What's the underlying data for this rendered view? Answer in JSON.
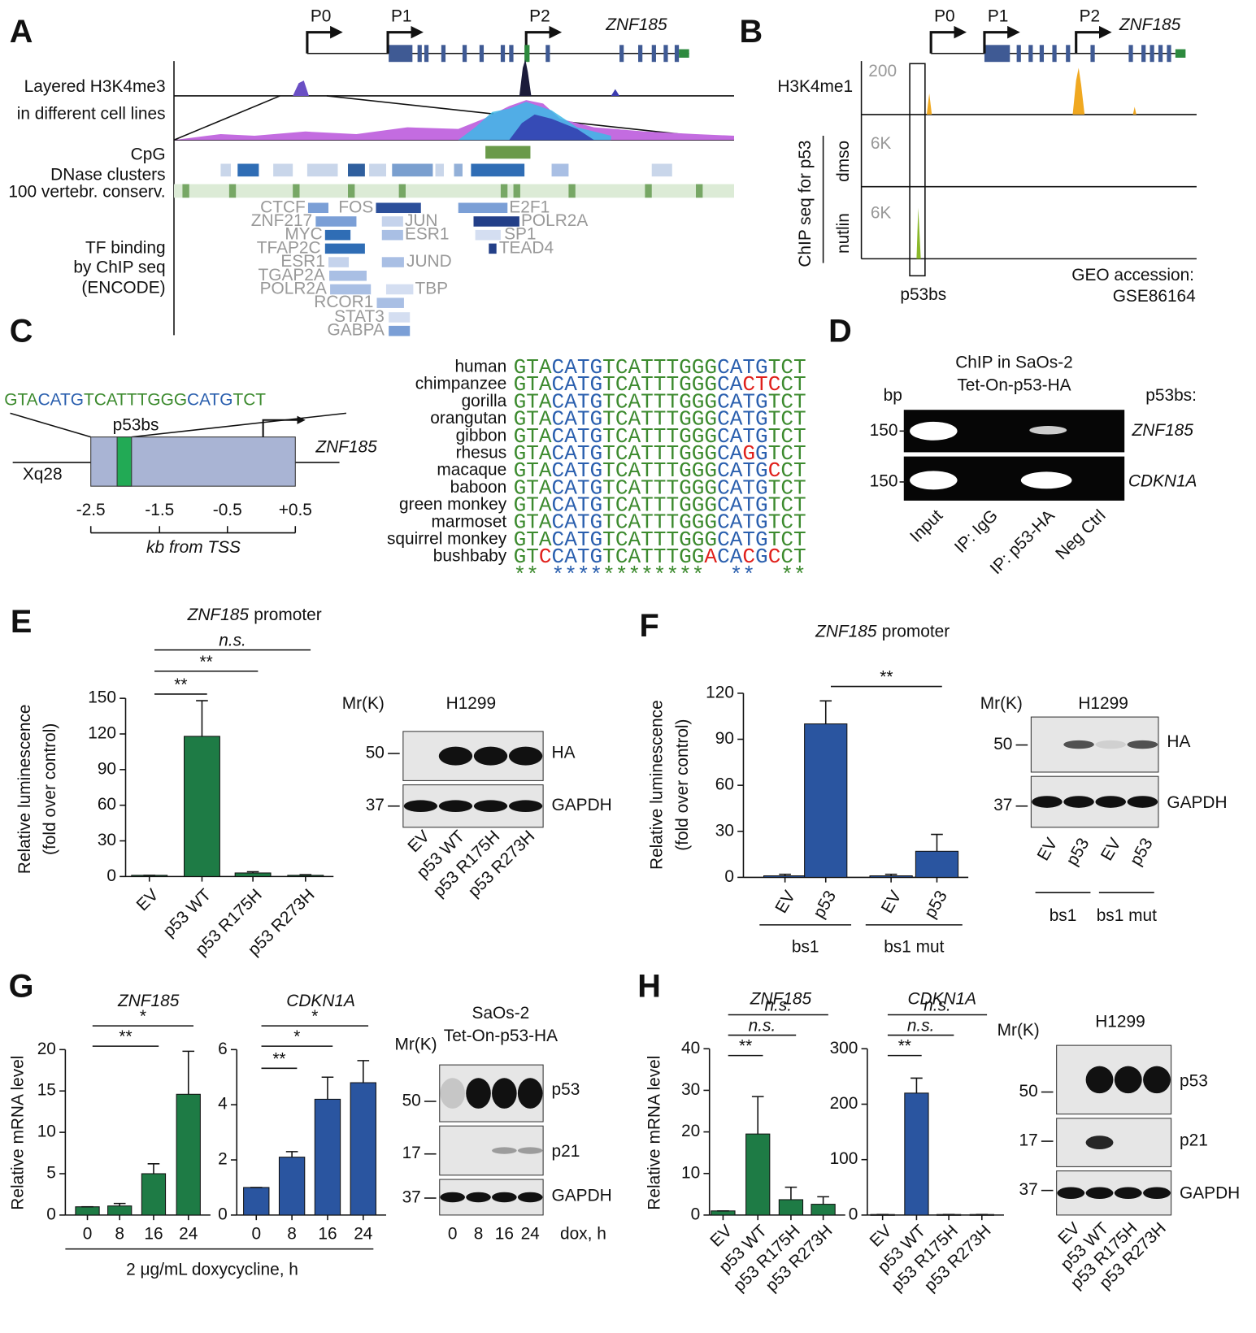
{
  "panel_labels": [
    "A",
    "B",
    "C",
    "D",
    "E",
    "F",
    "G",
    "H"
  ],
  "panel_a": {
    "promoters": [
      "P0",
      "P1",
      "P2"
    ],
    "gene": "ZNF185",
    "tracks": [
      "Layered H3K4me3",
      "in different cell lines",
      "CpG",
      "DNase clusters",
      "100 vertebr. conserv.",
      "TF binding",
      "by ChIP seq",
      "(ENCODE)"
    ],
    "tf_labels": [
      "CTCF",
      "FOS",
      "E2F1",
      "ZNF217",
      "JUN",
      "POLR2A",
      "MYC",
      "ESR1",
      "SP1",
      "TFAP2C",
      "TEAD4",
      "ESR1",
      "JUND",
      "TGAP2A",
      "POLR2A",
      "TBP",
      "RCOR1",
      "STAT3",
      "GABPA"
    ]
  },
  "panel_b": {
    "promoters": [
      "P0",
      "P1",
      "P2"
    ],
    "gene": "ZNF185",
    "h3k4me1_scale": "200",
    "h3k4me1": "H3K4me1",
    "chip_label": "ChIP seq for p53",
    "dmso_scale": "6K",
    "dmso": "dmso",
    "nutlin_scale": "6K",
    "nutlin": "nutlin",
    "site": "p53bs",
    "geo": [
      "GEO accession:",
      "GSE86164"
    ]
  },
  "panel_c": {
    "sequence_parts": [
      "GTA",
      "CATG",
      "TCATTTGGG",
      "CATG",
      "TCT"
    ],
    "colors": {
      "flank": "#3c8a2e",
      "core": "#2a5fae",
      "mismatch": "#e0201b"
    },
    "site": "p53bs",
    "locus": "Xq28",
    "gene": "ZNF185",
    "axis_ticks": [
      "-2.5",
      "-1.5",
      "-0.5",
      "+0.5"
    ],
    "axis_label": "kb from TSS",
    "species": [
      {
        "name": "human",
        "seq": "GTACATGTCATTTGGGCATGTCT"
      },
      {
        "name": "chimpanzee",
        "seq": "GTACATGTCATTTGGGCACTCCT"
      },
      {
        "name": "gorilla",
        "seq": "GTACATGTCATTTGGGCATGTCT"
      },
      {
        "name": "orangutan",
        "seq": "GTACATGTCATTTGGGCATGTCT"
      },
      {
        "name": "gibbon",
        "seq": "GTACATGTCATTTGGGCATGTCT"
      },
      {
        "name": "rhesus",
        "seq": "GTACATGTCATTTGGGCAGGTCT"
      },
      {
        "name": "macaque",
        "seq": "GTACATGTCATTTGGGCATGCCT"
      },
      {
        "name": "baboon",
        "seq": "GTACATGTCATTTGGGCATGTCT"
      },
      {
        "name": "green monkey",
        "seq": "GTACATGTCATTTGGGCATGTCT"
      },
      {
        "name": "marmoset",
        "seq": "GTACATGTCATTTGGGCATGTCT"
      },
      {
        "name": "squirrel monkey",
        "seq": "GTACATGTCATTTGGGCATGTCT"
      },
      {
        "name": "bushbaby",
        "seq": "GTCCATGTCATTTGGACACGCCT"
      }
    ],
    "conservation": "** ************  **  **"
  },
  "panel_d": {
    "title": [
      "ChIP in SaOs-2",
      "Tet-On-p53-HA"
    ],
    "size_unit": "bp",
    "target_header": "p53bs:",
    "size_markers": [
      "150",
      "150"
    ],
    "targets": [
      "ZNF185",
      "CDKN1A"
    ],
    "lanes": [
      "Input",
      "IP: IgG",
      "IP: p53-HA",
      "Neg Ctrl"
    ]
  },
  "blot_e": {
    "mr": "Mr(K)",
    "title": [
      "H1299"
    ],
    "markers": [
      "50",
      "37"
    ],
    "bands": [
      "HA",
      "GAPDH"
    ],
    "lanes": [
      "EV",
      "p53 WT",
      "p53 R175H",
      "p53 R273H"
    ]
  },
  "blot_f": {
    "mr": "Mr(K)",
    "title": [
      "H1299"
    ],
    "markers": [
      "50",
      "37"
    ],
    "bands": [
      "HA",
      "GAPDH"
    ],
    "lanes": [
      "EV",
      "p53",
      "EV",
      "p53"
    ],
    "groups": [
      "bs1",
      "bs1 mut"
    ]
  },
  "blot_g": {
    "mr": "Mr(K)",
    "title": [
      "SaOs-2",
      "Tet-On-p53-HA"
    ],
    "markers": [
      "50",
      "17",
      "37"
    ],
    "bands": [
      "p53",
      "p21",
      "GAPDH"
    ],
    "lanes": [
      "0",
      "8",
      "16",
      "24"
    ],
    "lane_unit": "dox, h"
  },
  "blot_h": {
    "mr": "Mr(K)",
    "title": [
      "H1299"
    ],
    "markers": [
      "50",
      "17",
      "37"
    ],
    "bands": [
      "p53",
      "p21",
      "GAPDH"
    ],
    "lanes": [
      "EV",
      "p53 WT",
      "p53 R175H",
      "p53 R273H"
    ]
  },
  "chart_data": [
    {
      "type": "bar",
      "title": "ZNF185",
      "title_rest": "promoter",
      "y_label": [
        "Relative luminescence",
        "(fold over control)"
      ],
      "categories": [
        "EV",
        "p53 WT",
        "p53 R175H",
        "p53 R273H"
      ],
      "values": [
        1,
        118,
        3,
        1
      ],
      "errors": [
        0,
        30,
        1,
        0.5
      ],
      "color": "#1e7b45",
      "ylim": [
        0,
        150
      ],
      "yticks": [
        0,
        30,
        60,
        90,
        120,
        150
      ],
      "significance": [
        {
          "from": 0,
          "to": 1,
          "label": "**"
        },
        {
          "from": 0,
          "to": 2,
          "label": "**"
        },
        {
          "from": 0,
          "to": 3,
          "label": "n.s."
        }
      ]
    },
    {
      "type": "bar",
      "title": "ZNF185",
      "title_rest": "promoter",
      "y_label": [
        "Relative luminescence",
        "(fold over control)"
      ],
      "categories": [
        "EV",
        "p53",
        "EV",
        "p53"
      ],
      "values": [
        1,
        100,
        1,
        17
      ],
      "errors": [
        1,
        15,
        1,
        11
      ],
      "color": "#2a55a0",
      "ylim": [
        0,
        120
      ],
      "yticks": [
        0,
        30,
        60,
        90,
        120
      ],
      "significance": [
        {
          "from": 1,
          "to": 3,
          "label": "**"
        }
      ],
      "groups": [
        {
          "label": "bs1",
          "from": 0,
          "to": 1
        },
        {
          "label": "bs1 mut",
          "from": 2,
          "to": 3
        }
      ]
    },
    {
      "type": "bar",
      "title": "ZNF185",
      "y_label": [
        "Relative mRNA level"
      ],
      "x_label": "2 μg/mL doxycycline, h",
      "categories": [
        "0",
        "8",
        "16",
        "24"
      ],
      "values": [
        1,
        1.1,
        5,
        14.6
      ],
      "errors": [
        0,
        0.3,
        1.2,
        5.2
      ],
      "color": "#1e7b45",
      "ylim": [
        0,
        20
      ],
      "yticks": [
        0,
        5,
        10,
        15,
        20
      ],
      "significance": [
        {
          "from": 0,
          "to": 2,
          "label": "**"
        },
        {
          "from": 0,
          "to": 3,
          "label": "*"
        }
      ]
    },
    {
      "type": "bar",
      "title": "CDKN1A",
      "categories": [
        "0",
        "8",
        "16",
        "24"
      ],
      "values": [
        1,
        2.1,
        4.2,
        4.8
      ],
      "errors": [
        0,
        0.2,
        0.8,
        0.8
      ],
      "color": "#2a55a0",
      "ylim": [
        0,
        6
      ],
      "yticks": [
        0,
        2,
        4,
        6
      ],
      "significance": [
        {
          "from": 0,
          "to": 1,
          "label": "**"
        },
        {
          "from": 0,
          "to": 2,
          "label": "*"
        },
        {
          "from": 0,
          "to": 3,
          "label": "*"
        }
      ]
    },
    {
      "type": "bar",
      "title": "ZNF185",
      "y_label": [
        "Relative mRNA level"
      ],
      "categories": [
        "EV",
        "p53 WT",
        "p53 R175H",
        "p53 R273H"
      ],
      "values": [
        1,
        19.5,
        3.7,
        2.6
      ],
      "errors": [
        0,
        9,
        3,
        1.8
      ],
      "color": "#1e7b45",
      "ylim": [
        0,
        40
      ],
      "yticks": [
        0,
        10,
        20,
        30,
        40
      ],
      "significance": [
        {
          "from": 0,
          "to": 1,
          "label": "**"
        },
        {
          "from": 0,
          "to": 2,
          "label": "n.s."
        },
        {
          "from": 0,
          "to": 3,
          "label": "n.s."
        }
      ]
    },
    {
      "type": "bar",
      "title": "CDKN1A",
      "categories": [
        "EV",
        "p53 WT",
        "p53 R175H",
        "p53 R273H"
      ],
      "values": [
        1,
        220,
        1,
        1
      ],
      "errors": [
        0,
        27,
        0,
        0
      ],
      "color": "#2a55a0",
      "ylim": [
        0,
        300
      ],
      "yticks": [
        0,
        100,
        200,
        300
      ],
      "significance": [
        {
          "from": 0,
          "to": 1,
          "label": "**"
        },
        {
          "from": 0,
          "to": 2,
          "label": "n.s."
        },
        {
          "from": 0,
          "to": 3,
          "label": "n.s."
        }
      ]
    }
  ]
}
